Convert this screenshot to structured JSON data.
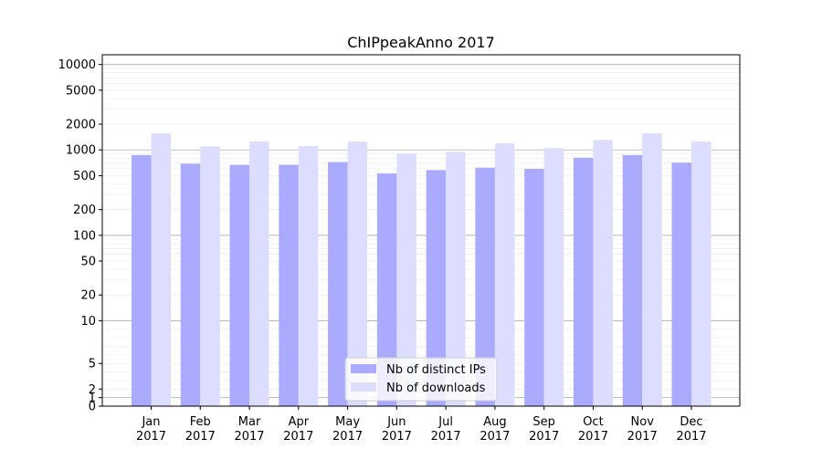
{
  "chart_data": {
    "type": "bar",
    "title": "ChIPpeakAnno 2017",
    "xlabel": "",
    "ylabel": "",
    "yscale": "symlog",
    "ylim": [
      0,
      13000
    ],
    "categories": [
      "Jan\n2017",
      "Feb\n2017",
      "Mar\n2017",
      "Apr\n2017",
      "May\n2017",
      "Jun\n2017",
      "Jul\n2017",
      "Aug\n2017",
      "Sep\n2017",
      "Oct\n2017",
      "Nov\n2017",
      "Dec\n2017"
    ],
    "yticks": [
      {
        "value": 0,
        "label": "0"
      },
      {
        "value": 1,
        "label": "1"
      },
      {
        "value": 2,
        "label": "2"
      },
      {
        "value": 5,
        "label": "5"
      },
      {
        "value": 10,
        "label": "10"
      },
      {
        "value": 20,
        "label": "20"
      },
      {
        "value": 50,
        "label": "50"
      },
      {
        "value": 100,
        "label": "100"
      },
      {
        "value": 200,
        "label": "200"
      },
      {
        "value": 500,
        "label": "500"
      },
      {
        "value": 1000,
        "label": "1000"
      },
      {
        "value": 2000,
        "label": "2000"
      },
      {
        "value": 5000,
        "label": "5000"
      },
      {
        "value": 10000,
        "label": "10000"
      }
    ],
    "series": [
      {
        "name": "Nb of distinct IPs",
        "color": "#aaaaff",
        "values": [
          870,
          690,
          670,
          670,
          720,
          530,
          580,
          620,
          600,
          810,
          870,
          710
        ]
      },
      {
        "name": "Nb of downloads",
        "color": "#ddddff",
        "values": [
          1560,
          1100,
          1250,
          1110,
          1250,
          910,
          950,
          1190,
          1050,
          1310,
          1560,
          1250
        ]
      }
    ],
    "grid": true,
    "legend_position": "bottom-center"
  }
}
